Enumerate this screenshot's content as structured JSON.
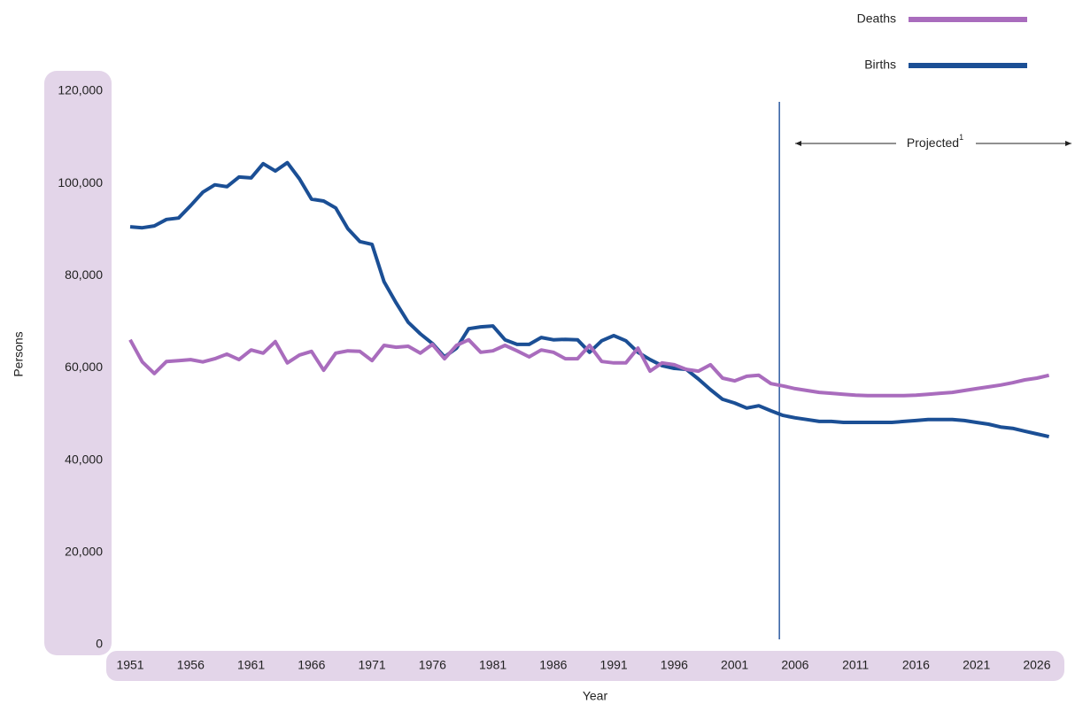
{
  "chart_data": {
    "type": "line",
    "x_label": "Year",
    "y_label": "Persons",
    "x": [
      1951,
      1952,
      1953,
      1954,
      1955,
      1956,
      1957,
      1958,
      1959,
      1960,
      1961,
      1962,
      1963,
      1964,
      1965,
      1966,
      1967,
      1968,
      1969,
      1970,
      1971,
      1972,
      1973,
      1974,
      1975,
      1976,
      1977,
      1978,
      1979,
      1980,
      1981,
      1982,
      1983,
      1984,
      1985,
      1986,
      1987,
      1988,
      1989,
      1990,
      1991,
      1992,
      1993,
      1994,
      1995,
      1996,
      1997,
      1998,
      1999,
      2000,
      2001,
      2002,
      2003,
      2004,
      2005,
      2006,
      2007,
      2008,
      2009,
      2010,
      2011,
      2012,
      2013,
      2014,
      2015,
      2016,
      2017,
      2018,
      2019,
      2020,
      2021,
      2022,
      2023,
      2024,
      2025,
      2026,
      2027
    ],
    "series": [
      {
        "name": "Deaths",
        "color": "#a96cbd",
        "values": [
          66100,
          61300,
          58800,
          61400,
          61600,
          61800,
          61300,
          62000,
          63000,
          61800,
          63900,
          63200,
          65700,
          61100,
          62800,
          63600,
          59500,
          63200,
          63700,
          63600,
          61600,
          64900,
          64500,
          64700,
          63200,
          65100,
          62000,
          64900,
          66100,
          63400,
          63700,
          64900,
          63700,
          62400,
          63900,
          63400,
          62000,
          62000,
          64900,
          61400,
          61100,
          61100,
          64300,
          59300,
          61100,
          60700,
          59700,
          59300,
          60700,
          57800,
          57200,
          58200,
          58400,
          56600,
          56100,
          55500,
          55100,
          54700,
          54500,
          54300,
          54100,
          54000,
          54000,
          54000,
          54000,
          54100,
          54300,
          54500,
          54700,
          55100,
          55500,
          55900,
          56300,
          56800,
          57400,
          57800,
          58400
        ]
      },
      {
        "name": "Births",
        "color": "#1b4f95",
        "values": [
          90600,
          90400,
          90800,
          92200,
          92500,
          95200,
          98100,
          99700,
          99300,
          101400,
          101200,
          104300,
          102700,
          104500,
          101000,
          96600,
          96200,
          94700,
          90200,
          87400,
          86800,
          78700,
          74100,
          69900,
          67400,
          65300,
          62400,
          64300,
          68500,
          68900,
          69100,
          66100,
          65100,
          65100,
          66600,
          66100,
          66200,
          66100,
          63400,
          65900,
          67000,
          65900,
          63400,
          61800,
          60500,
          59900,
          59700,
          57600,
          55300,
          53200,
          52400,
          51300,
          51800,
          50700,
          49700,
          49200,
          48800,
          48400,
          48400,
          48200,
          48200,
          48200,
          48200,
          48200,
          48400,
          48600,
          48800,
          48800,
          48800,
          48600,
          48200,
          47800,
          47200,
          46900,
          46300,
          45700,
          45100
        ]
      }
    ],
    "xlim": [
      1949.4,
      2028.1
    ],
    "xticks": [
      1951,
      1956,
      1961,
      1966,
      1971,
      1976,
      1981,
      1986,
      1991,
      1996,
      2001,
      2006,
      2011,
      2016,
      2021,
      2026
    ],
    "ylim": [
      0,
      120000
    ],
    "yticks": [
      0,
      {
        "value": 20000,
        "label": "20,000"
      },
      {
        "value": 40000,
        "label": "40,000"
      },
      {
        "value": 60000,
        "label": "60,000"
      },
      {
        "value": 80000,
        "label": "80,000"
      },
      {
        "value": 100000,
        "label": "100,000"
      },
      {
        "value": 120000,
        "label": "120,000"
      }
    ],
    "annotation": {
      "text": "Projected",
      "note": "1",
      "x": 2004.7
    },
    "legend": "top-right"
  }
}
